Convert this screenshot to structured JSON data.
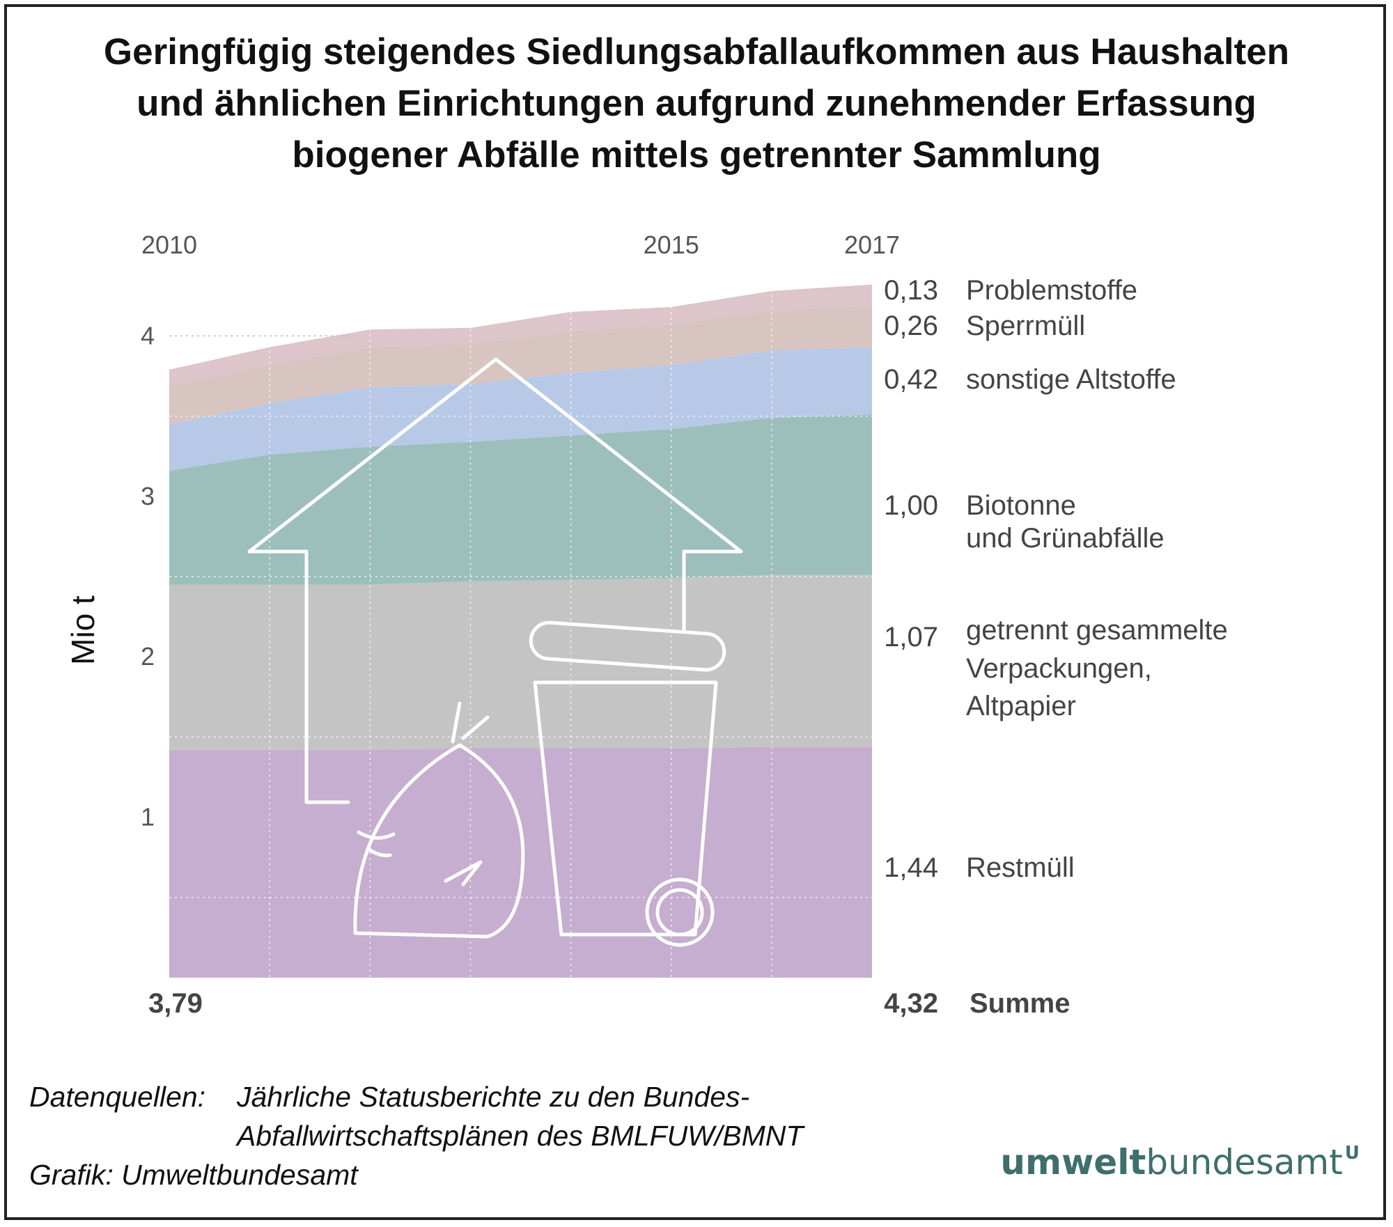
{
  "title_lines": [
    "Geringfügig steigendes Siedlungsabfallaufkommen aus Haushalten",
    "und ähnlichen Einrichtungen aufgrund zunehmender Erfassung",
    "biogener Abfälle mittels getrennter Sammlung"
  ],
  "chart_data": {
    "type": "area",
    "stacked": true,
    "x": [
      2010,
      2011,
      2012,
      2013,
      2014,
      2015,
      2016,
      2017
    ],
    "x_tick_labels": [
      "2010",
      "2015",
      "2017"
    ],
    "ylabel": "Mio t",
    "yticks": [
      1,
      2,
      3,
      4
    ],
    "ylim": [
      0,
      4.5
    ],
    "series": [
      {
        "name": "Restmüll",
        "values": [
          1.42,
          1.42,
          1.42,
          1.43,
          1.43,
          1.43,
          1.44,
          1.44
        ],
        "end_label": "1,44",
        "color": "#c5aed0"
      },
      {
        "name": "getrennt gesammelte Verpackungen, Altpapier",
        "values": [
          1.03,
          1.03,
          1.03,
          1.04,
          1.05,
          1.06,
          1.07,
          1.07
        ],
        "end_label": "1,07",
        "color": "#c4c4c4"
      },
      {
        "name": "Biotonne und Grünabfälle",
        "values": [
          0.71,
          0.81,
          0.86,
          0.87,
          0.9,
          0.93,
          0.98,
          1.0
        ],
        "end_label": "1,00",
        "color": "#9dbfbb"
      },
      {
        "name": "sonstige Altstoffe",
        "values": [
          0.29,
          0.32,
          0.37,
          0.36,
          0.39,
          0.4,
          0.42,
          0.42
        ],
        "end_label": "0,42",
        "color": "#b7c9e6"
      },
      {
        "name": "Sperrmüll",
        "values": [
          0.24,
          0.24,
          0.25,
          0.25,
          0.26,
          0.25,
          0.25,
          0.26
        ],
        "end_label": "0,26",
        "color": "#d8c4c0"
      },
      {
        "name": "Problemstoffe",
        "values": [
          0.1,
          0.11,
          0.11,
          0.1,
          0.12,
          0.11,
          0.12,
          0.13
        ],
        "end_label": "0,13",
        "color": "#ddc5cb"
      }
    ],
    "legend_labels": [
      [
        "Problemstoffe"
      ],
      [
        "Sperrmüll"
      ],
      [
        "sonstige Altstoffe"
      ],
      [
        "Biotonne",
        "und Grünabfälle"
      ],
      [
        "getrennt gesammelte",
        "Verpackungen,",
        "Altpapier"
      ],
      [
        "Restmüll"
      ]
    ],
    "sum_start": "3,79",
    "sum_end": "4,32",
    "sum_label": "Summe",
    "legend_placement": "right",
    "grid": "dotted"
  },
  "source": {
    "label": "Datenquellen:",
    "line1": "Jährliche Statusberichte zu den Bundes-",
    "line2": "Abfallwirtschaftsplänen des BMLFUW/BMNT",
    "credit": "Grafik: Umweltbundesamt"
  },
  "logo": {
    "bold": "umwelt",
    "regular": "bundesamt",
    "mark": "U"
  }
}
